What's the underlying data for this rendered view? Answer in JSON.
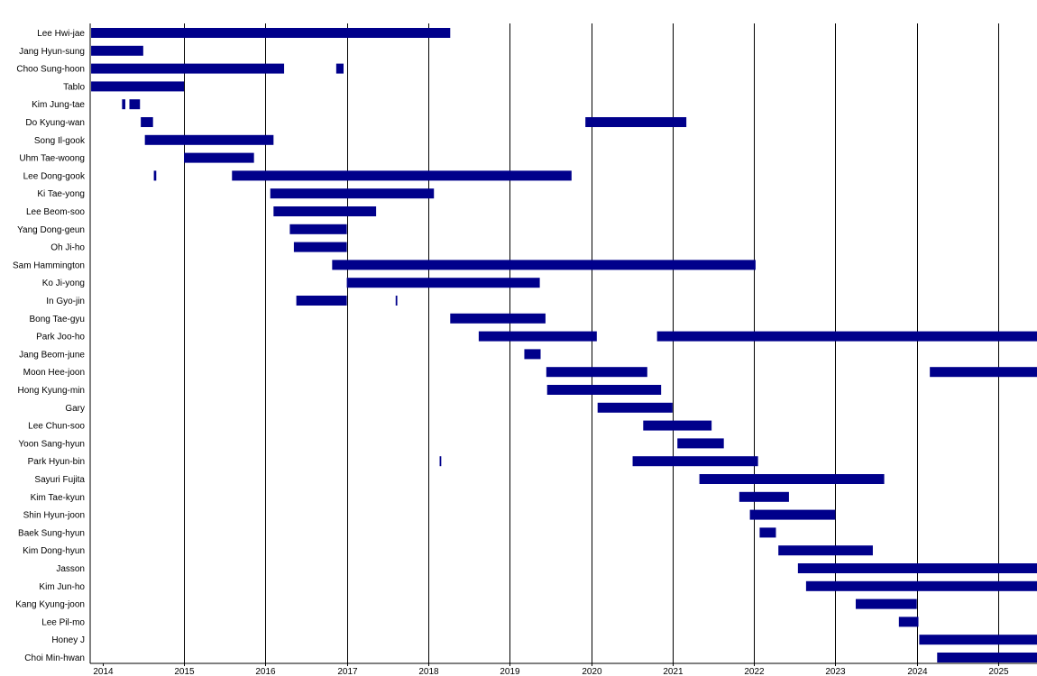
{
  "chart_data": {
    "type": "bar",
    "orientation": "horizontal-timeline",
    "title": "",
    "xlabel": "",
    "ylabel": "",
    "x_ticks": [
      "2014",
      "2015",
      "2016",
      "2017",
      "2018",
      "2019",
      "2020",
      "2021",
      "2022",
      "2023",
      "2024",
      "2025"
    ],
    "xlim": [
      2013.86,
      2025.5
    ],
    "grid": "vertical lines at each year",
    "colors": {
      "bar": "#00008b",
      "grid": "#000000",
      "background": "#ffffff"
    },
    "rows": [
      {
        "name": "Lee Hwi-jae",
        "segments": [
          [
            2013.86,
            2018.27
          ]
        ]
      },
      {
        "name": "Jang Hyun-sung",
        "segments": [
          [
            2013.86,
            2014.5
          ]
        ]
      },
      {
        "name": "Choo Sung-hoon",
        "segments": [
          [
            2013.86,
            2016.23
          ],
          [
            2016.87,
            2016.96
          ]
        ]
      },
      {
        "name": "Tablo",
        "segments": [
          [
            2013.86,
            2015.0
          ]
        ]
      },
      {
        "name": "Kim Jung-tae",
        "segments": [
          [
            2014.24,
            2014.28
          ],
          [
            2014.33,
            2014.46
          ]
        ]
      },
      {
        "name": "Do Kyung-wan",
        "segments": [
          [
            2014.47,
            2014.62
          ],
          [
            2019.93,
            2021.17
          ]
        ]
      },
      {
        "name": "Song Il-gook",
        "segments": [
          [
            2014.52,
            2016.1
          ]
        ]
      },
      {
        "name": "Uhm Tae-woong",
        "segments": [
          [
            2015.0,
            2015.86
          ]
        ]
      },
      {
        "name": "Lee Dong-gook",
        "segments": [
          [
            2014.63,
            2014.66
          ],
          [
            2015.59,
            2019.76
          ]
        ]
      },
      {
        "name": "Ki Tae-yong",
        "segments": [
          [
            2016.06,
            2018.07
          ]
        ]
      },
      {
        "name": "Lee Beom-soo",
        "segments": [
          [
            2016.1,
            2017.36
          ]
        ]
      },
      {
        "name": "Yang Dong-geun",
        "segments": [
          [
            2016.3,
            2017.0
          ]
        ]
      },
      {
        "name": "Oh Ji-ho",
        "segments": [
          [
            2016.35,
            2017.0
          ]
        ]
      },
      {
        "name": "Sam Hammington",
        "segments": [
          [
            2016.82,
            2022.02
          ]
        ]
      },
      {
        "name": "Ko Ji-yong",
        "segments": [
          [
            2017.0,
            2019.37
          ]
        ]
      },
      {
        "name": "In Gyo-jin",
        "segments": [
          [
            2016.38,
            2017.0
          ],
          [
            2017.6,
            2017.62
          ]
        ]
      },
      {
        "name": "Bong Tae-gyu",
        "segments": [
          [
            2018.27,
            2019.44
          ]
        ]
      },
      {
        "name": "Park Joo-ho",
        "segments": [
          [
            2018.62,
            2020.07
          ],
          [
            2020.81,
            2025.5
          ]
        ]
      },
      {
        "name": "Jang Beom-june",
        "segments": [
          [
            2019.18,
            2019.38
          ]
        ]
      },
      {
        "name": "Moon Hee-joon",
        "segments": [
          [
            2019.45,
            2020.69
          ],
          [
            2024.16,
            2025.5
          ]
        ]
      },
      {
        "name": "Hong Kyung-min",
        "segments": [
          [
            2019.46,
            2020.86
          ]
        ]
      },
      {
        "name": "Gary",
        "segments": [
          [
            2020.08,
            2021.0
          ]
        ]
      },
      {
        "name": "Lee Chun-soo",
        "segments": [
          [
            2020.64,
            2021.48
          ]
        ]
      },
      {
        "name": "Yoon Sang-hyun",
        "segments": [
          [
            2021.06,
            2021.63
          ]
        ]
      },
      {
        "name": "Park Hyun-bin",
        "segments": [
          [
            2018.14,
            2018.16
          ],
          [
            2020.51,
            2022.05
          ]
        ]
      },
      {
        "name": "Sayuri Fujita",
        "segments": [
          [
            2021.33,
            2023.6
          ]
        ]
      },
      {
        "name": "Kim Tae-kyun",
        "segments": [
          [
            2021.82,
            2022.43
          ]
        ]
      },
      {
        "name": "Shin Hyun-joon",
        "segments": [
          [
            2021.95,
            2023.0
          ]
        ]
      },
      {
        "name": "Baek Sung-hyun",
        "segments": [
          [
            2022.07,
            2022.27
          ]
        ]
      },
      {
        "name": "Kim Dong-hyun",
        "segments": [
          [
            2022.3,
            2023.46
          ]
        ]
      },
      {
        "name": "Jasson",
        "segments": [
          [
            2022.54,
            2025.5
          ]
        ]
      },
      {
        "name": "Kim Jun-ho",
        "segments": [
          [
            2022.64,
            2025.5
          ]
        ]
      },
      {
        "name": "Kang Kyung-joon",
        "segments": [
          [
            2023.25,
            2024.0
          ]
        ]
      },
      {
        "name": "Lee Pil-mo",
        "segments": [
          [
            2023.78,
            2024.02
          ]
        ]
      },
      {
        "name": "Honey J",
        "segments": [
          [
            2024.03,
            2025.5
          ]
        ]
      },
      {
        "name": "Choi Min-hwan",
        "segments": [
          [
            2024.25,
            2025.5
          ]
        ]
      }
    ]
  }
}
